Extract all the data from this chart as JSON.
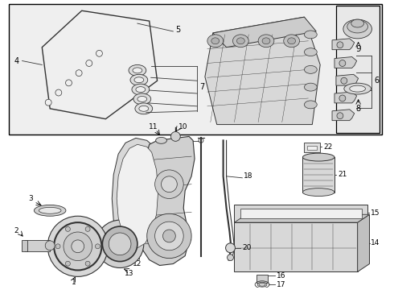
{
  "bg_color": "#ffffff",
  "box_fill": "#efefef",
  "box_edge": "#222222",
  "lc": "#333333",
  "lw": 0.7,
  "white": "#ffffff",
  "gray1": "#cccccc",
  "gray2": "#e8e8e8",
  "gray3": "#aaaaaa"
}
